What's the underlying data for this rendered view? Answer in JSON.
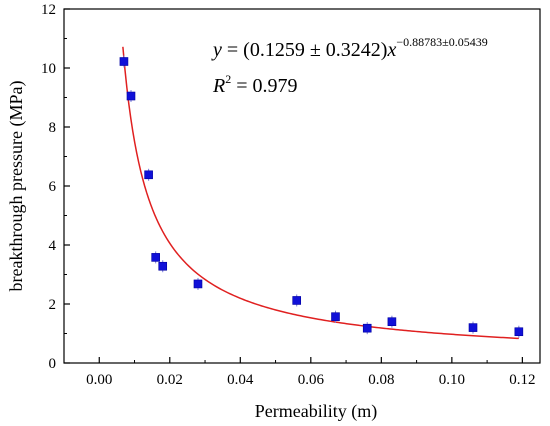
{
  "chart_data": {
    "type": "scatter",
    "xlabel": "Permeability (m)",
    "ylabel": "breakthrough pressure (MPa)",
    "xlim": [
      -0.01,
      0.125
    ],
    "ylim": [
      0,
      12
    ],
    "xticks": [
      "0.00",
      "0.02",
      "0.04",
      "0.06",
      "0.08",
      "0.10",
      "0.12"
    ],
    "xtick_values": [
      0.0,
      0.02,
      0.04,
      0.06,
      0.08,
      0.1,
      0.12
    ],
    "yticks": [
      "0",
      "2",
      "4",
      "6",
      "8",
      "10",
      "12"
    ],
    "ytick_values": [
      0,
      2,
      4,
      6,
      8,
      10,
      12
    ],
    "grid": false,
    "points": [
      {
        "x": 0.007,
        "y": 10.22
      },
      {
        "x": 0.009,
        "y": 9.05
      },
      {
        "x": 0.014,
        "y": 6.38
      },
      {
        "x": 0.016,
        "y": 3.58
      },
      {
        "x": 0.018,
        "y": 3.28
      },
      {
        "x": 0.028,
        "y": 2.68
      },
      {
        "x": 0.056,
        "y": 2.12
      },
      {
        "x": 0.067,
        "y": 1.57
      },
      {
        "x": 0.076,
        "y": 1.18
      },
      {
        "x": 0.083,
        "y": 1.4
      },
      {
        "x": 0.106,
        "y": 1.2
      },
      {
        "x": 0.119,
        "y": 1.06
      }
    ],
    "fit": {
      "a": 0.1259,
      "b": -0.88783,
      "x_from": 0.0067,
      "x_to": 0.119
    },
    "equation": {
      "y": "y",
      "eq": " = (0.1259 ± 0.3242)",
      "x": "x",
      "exponent": "−0.88783±0.05439",
      "r": "R",
      "r_sup": "2",
      "r_val": " = 0.979"
    },
    "colors": {
      "marker": "#1010d8",
      "fit": "#e02020",
      "axis": "#000000"
    }
  }
}
